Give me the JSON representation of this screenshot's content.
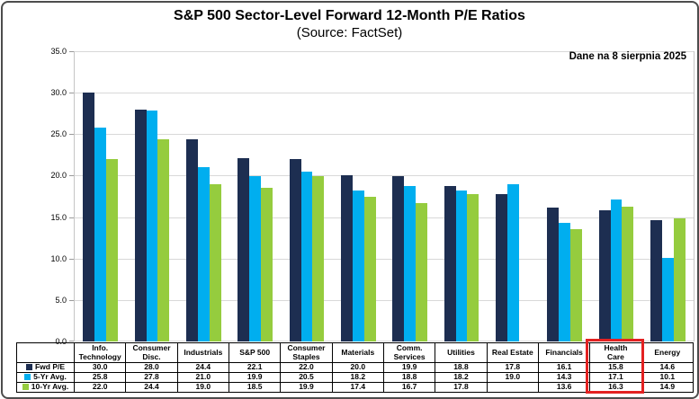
{
  "chart_data": {
    "type": "bar",
    "title": "S&P 500 Sector-Level Forward 12-Month P/E Ratios",
    "subtitle": "(Source: FactSet)",
    "annotation": "Dane na 8 sierpnia 2025",
    "categories": [
      "Info.\nTechnology",
      "Consumer\nDisc.",
      "Industrials",
      "S&P 500",
      "Consumer\nStaples",
      "Materials",
      "Comm.\nServices",
      "Utilities",
      "Real Estate",
      "Financials",
      "Health\nCare",
      "Energy"
    ],
    "series": [
      {
        "name": "Fwd P/E",
        "color": "#1d2e51",
        "values": [
          30.0,
          28.0,
          24.4,
          22.1,
          22.0,
          20.0,
          19.9,
          18.8,
          17.8,
          16.1,
          15.8,
          14.6
        ]
      },
      {
        "name": "5-Yr Avg.",
        "color": "#00aeef",
        "values": [
          25.8,
          27.8,
          21.0,
          19.9,
          20.5,
          18.2,
          18.8,
          18.2,
          19.0,
          14.3,
          17.1,
          10.1
        ]
      },
      {
        "name": "10-Yr Avg.",
        "color": "#95cc3e",
        "values": [
          22.0,
          24.4,
          19.0,
          18.5,
          19.9,
          17.4,
          16.7,
          17.8,
          null,
          13.6,
          16.3,
          14.9
        ]
      }
    ],
    "y_axis": {
      "min": 0,
      "max": 35,
      "step": 5,
      "tick_labels": [
        "0.0",
        "5.0",
        "10.0",
        "15.0",
        "20.0",
        "25.0",
        "30.0",
        "35.0"
      ]
    },
    "grid": true,
    "legend_position": "table-left-column",
    "highlight": {
      "category": "Health Care",
      "index": 10,
      "color": "#e32121"
    }
  }
}
